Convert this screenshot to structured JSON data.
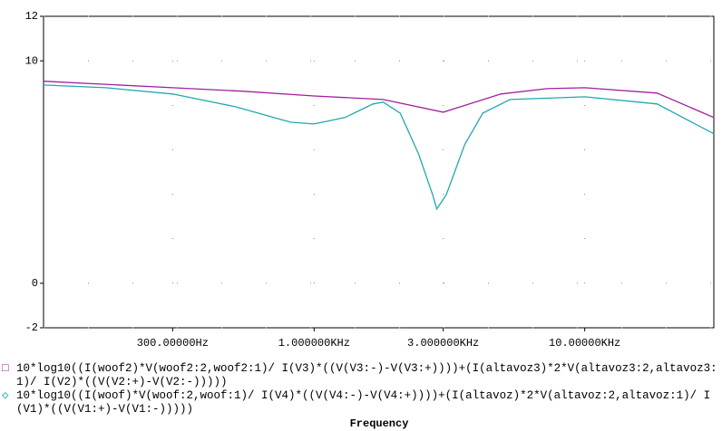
{
  "chart_data": {
    "type": "line",
    "x_label": "Frequency",
    "xscale": "log",
    "xlim": [
      100,
      30000
    ],
    "ylim": [
      -2,
      12
    ],
    "xticks": [
      {
        "value": 300,
        "label": "300.00000Hz"
      },
      {
        "value": 1000,
        "label": "1.000000KHz"
      },
      {
        "value": 3000,
        "label": "3.000000KHz"
      },
      {
        "value": 10000,
        "label": "10.00000KHz"
      }
    ],
    "yticks": [
      -2,
      0,
      10,
      12
    ],
    "grid": true,
    "series": [
      {
        "name": "10*log10((I(woof2)*V(woof2:2,woof2:1)/ I(V3)*((V(V3:-)-V(V3:+))))+(I(altavoz3)*2*V(altavoz3:2,altavoz3:1)/ I(V2)*((V(V2:+)-V(V2:-)))))",
        "color": "#a020a0",
        "x": [
          100,
          300,
          550,
          1000,
          1800,
          3000,
          4900,
          7250,
          10000,
          18500,
          30000
        ],
        "values": [
          9.08,
          8.79,
          8.63,
          8.42,
          8.26,
          7.69,
          8.51,
          8.75,
          8.79,
          8.55,
          7.45
        ]
      },
      {
        "name": "10*log10((I(woof)*V(woof:2,woof:1)/ I(V4)*((V(V4:-)-V(V4:+))))+(I(altavoz)*2*V(altavoz:2,altavoz:1)/ I(V1)*((V(V1:+)-V(V1:-)))))",
        "color": "#20a8b0",
        "x": [
          100,
          170,
          300,
          510,
          820,
          1000,
          1300,
          1650,
          1800,
          2080,
          2430,
          2740,
          2840,
          3080,
          3600,
          4200,
          5300,
          10000,
          18500,
          30000
        ],
        "values": [
          8.91,
          8.79,
          8.51,
          7.94,
          7.24,
          7.16,
          7.45,
          8.06,
          8.14,
          7.65,
          5.82,
          3.99,
          3.34,
          3.99,
          6.23,
          7.65,
          8.26,
          8.38,
          8.06,
          6.72
        ]
      }
    ]
  }
}
